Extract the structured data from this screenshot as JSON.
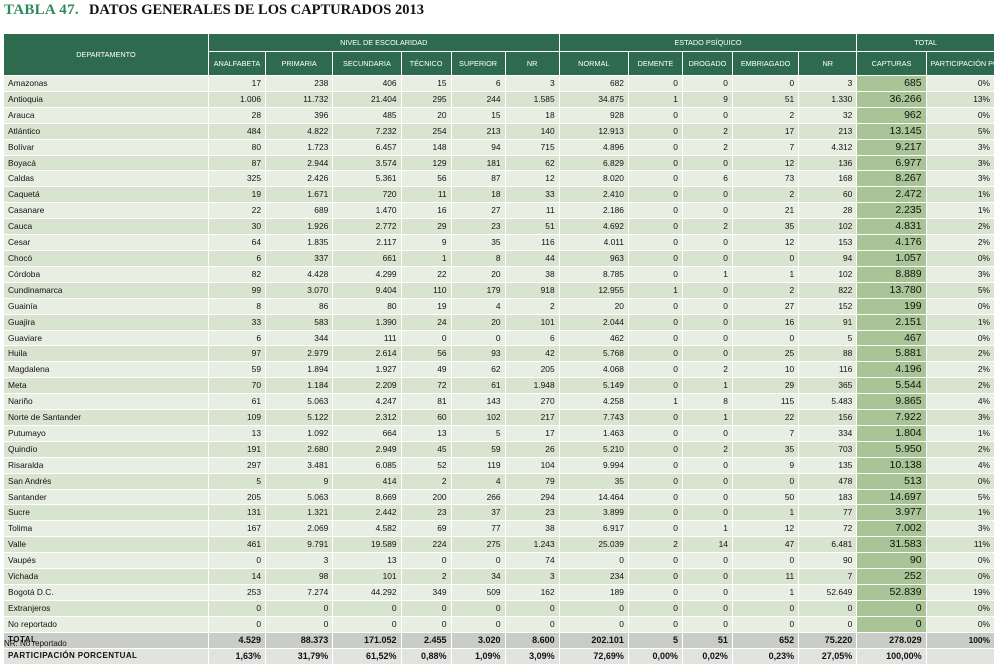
{
  "title": {
    "label": "TABLA 47.",
    "main": "DATOS GENERALES DE LOS CAPTURADOS 2013"
  },
  "headers": {
    "departamento": "DEPARTAMENTO",
    "group_escolaridad": "NIVEL DE ESCOLARIDAD",
    "group_psiquico": "ESTADO PSÍQUICO",
    "group_total": "TOTAL",
    "columns": [
      "ANALFABETA",
      "PRIMARIA",
      "SECUNDARIA",
      "TÉCNICO",
      "SUPERIOR",
      "NR",
      "NORMAL",
      "DEMENTE",
      "DROGADO",
      "EMBRIAGADO",
      "NR",
      "CAPTURAS",
      "PARTICIPACIÓN PORCENTUAL"
    ]
  },
  "rows": [
    [
      "Amazonas",
      "17",
      "238",
      "406",
      "15",
      "6",
      "3",
      "682",
      "0",
      "0",
      "0",
      "3",
      "685",
      "0%"
    ],
    [
      "Antioquia",
      "1.006",
      "11.732",
      "21.404",
      "295",
      "244",
      "1.585",
      "34.875",
      "1",
      "9",
      "51",
      "1.330",
      "36.266",
      "13%"
    ],
    [
      "Arauca",
      "28",
      "396",
      "485",
      "20",
      "15",
      "18",
      "928",
      "0",
      "0",
      "2",
      "32",
      "962",
      "0%"
    ],
    [
      "Atlántico",
      "484",
      "4.822",
      "7.232",
      "254",
      "213",
      "140",
      "12.913",
      "0",
      "2",
      "17",
      "213",
      "13.145",
      "5%"
    ],
    [
      "Bolívar",
      "80",
      "1.723",
      "6.457",
      "148",
      "94",
      "715",
      "4.896",
      "0",
      "2",
      "7",
      "4.312",
      "9.217",
      "3%"
    ],
    [
      "Boyacá",
      "87",
      "2.944",
      "3.574",
      "129",
      "181",
      "62",
      "6.829",
      "0",
      "0",
      "12",
      "136",
      "6.977",
      "3%"
    ],
    [
      "Caldas",
      "325",
      "2.426",
      "5.361",
      "56",
      "87",
      "12",
      "8.020",
      "0",
      "6",
      "73",
      "168",
      "8.267",
      "3%"
    ],
    [
      "Caquetá",
      "19",
      "1.671",
      "720",
      "11",
      "18",
      "33",
      "2.410",
      "0",
      "0",
      "2",
      "60",
      "2.472",
      "1%"
    ],
    [
      "Casanare",
      "22",
      "689",
      "1.470",
      "16",
      "27",
      "11",
      "2.186",
      "0",
      "0",
      "21",
      "28",
      "2.235",
      "1%"
    ],
    [
      "Cauca",
      "30",
      "1.926",
      "2.772",
      "29",
      "23",
      "51",
      "4.692",
      "0",
      "2",
      "35",
      "102",
      "4.831",
      "2%"
    ],
    [
      "Cesar",
      "64",
      "1.835",
      "2.117",
      "9",
      "35",
      "116",
      "4.011",
      "0",
      "0",
      "12",
      "153",
      "4.176",
      "2%"
    ],
    [
      "Chocó",
      "6",
      "337",
      "661",
      "1",
      "8",
      "44",
      "963",
      "0",
      "0",
      "0",
      "94",
      "1.057",
      "0%"
    ],
    [
      "Córdoba",
      "82",
      "4.428",
      "4.299",
      "22",
      "20",
      "38",
      "8.785",
      "0",
      "1",
      "1",
      "102",
      "8.889",
      "3%"
    ],
    [
      "Cundinamarca",
      "99",
      "3.070",
      "9.404",
      "110",
      "179",
      "918",
      "12.955",
      "1",
      "0",
      "2",
      "822",
      "13.780",
      "5%"
    ],
    [
      "Guainía",
      "8",
      "86",
      "80",
      "19",
      "4",
      "2",
      "20",
      "0",
      "0",
      "27",
      "152",
      "199",
      "0%"
    ],
    [
      "Guajira",
      "33",
      "583",
      "1.390",
      "24",
      "20",
      "101",
      "2.044",
      "0",
      "0",
      "16",
      "91",
      "2.151",
      "1%"
    ],
    [
      "Guaviare",
      "6",
      "344",
      "111",
      "0",
      "0",
      "6",
      "462",
      "0",
      "0",
      "0",
      "5",
      "467",
      "0%"
    ],
    [
      "Huila",
      "97",
      "2.979",
      "2.614",
      "56",
      "93",
      "42",
      "5.768",
      "0",
      "0",
      "25",
      "88",
      "5.881",
      "2%"
    ],
    [
      "Magdalena",
      "59",
      "1.894",
      "1.927",
      "49",
      "62",
      "205",
      "4.068",
      "0",
      "2",
      "10",
      "116",
      "4.196",
      "2%"
    ],
    [
      "Meta",
      "70",
      "1.184",
      "2.209",
      "72",
      "61",
      "1.948",
      "5.149",
      "0",
      "1",
      "29",
      "365",
      "5.544",
      "2%"
    ],
    [
      "Nariño",
      "61",
      "5.063",
      "4.247",
      "81",
      "143",
      "270",
      "4.258",
      "1",
      "8",
      "115",
      "5.483",
      "9.865",
      "4%"
    ],
    [
      "Norte de Santander",
      "109",
      "5.122",
      "2.312",
      "60",
      "102",
      "217",
      "7.743",
      "0",
      "1",
      "22",
      "156",
      "7.922",
      "3%"
    ],
    [
      "Putumayo",
      "13",
      "1.092",
      "664",
      "13",
      "5",
      "17",
      "1.463",
      "0",
      "0",
      "7",
      "334",
      "1.804",
      "1%"
    ],
    [
      "Quindío",
      "191",
      "2.680",
      "2.949",
      "45",
      "59",
      "26",
      "5.210",
      "0",
      "2",
      "35",
      "703",
      "5.950",
      "2%"
    ],
    [
      "Risaralda",
      "297",
      "3.481",
      "6.085",
      "52",
      "119",
      "104",
      "9.994",
      "0",
      "0",
      "9",
      "135",
      "10.138",
      "4%"
    ],
    [
      "San Andrés",
      "5",
      "9",
      "414",
      "2",
      "4",
      "79",
      "35",
      "0",
      "0",
      "0",
      "478",
      "513",
      "0%"
    ],
    [
      "Santander",
      "205",
      "5.063",
      "8.669",
      "200",
      "266",
      "294",
      "14.464",
      "0",
      "0",
      "50",
      "183",
      "14.697",
      "5%"
    ],
    [
      "Sucre",
      "131",
      "1.321",
      "2.442",
      "23",
      "37",
      "23",
      "3.899",
      "0",
      "0",
      "1",
      "77",
      "3.977",
      "1%"
    ],
    [
      "Tolima",
      "167",
      "2.069",
      "4.582",
      "69",
      "77",
      "38",
      "6.917",
      "0",
      "1",
      "12",
      "72",
      "7.002",
      "3%"
    ],
    [
      "Valle",
      "461",
      "9.791",
      "19.589",
      "224",
      "275",
      "1.243",
      "25.039",
      "2",
      "14",
      "47",
      "6.481",
      "31.583",
      "11%"
    ],
    [
      "Vaupés",
      "0",
      "3",
      "13",
      "0",
      "0",
      "74",
      "0",
      "0",
      "0",
      "0",
      "90",
      "90",
      "0%"
    ],
    [
      "Vichada",
      "14",
      "98",
      "101",
      "2",
      "34",
      "3",
      "234",
      "0",
      "0",
      "11",
      "7",
      "252",
      "0%"
    ],
    [
      "Bogotá D.C.",
      "253",
      "7.274",
      "44.292",
      "349",
      "509",
      "162",
      "189",
      "0",
      "0",
      "1",
      "52.649",
      "52.839",
      "19%"
    ],
    [
      "Extranjeros",
      "0",
      "0",
      "0",
      "0",
      "0",
      "0",
      "0",
      "0",
      "0",
      "0",
      "0",
      "0",
      "0%"
    ],
    [
      "No reportado",
      "0",
      "0",
      "0",
      "0",
      "0",
      "0",
      "0",
      "0",
      "0",
      "0",
      "0",
      "0",
      "0%"
    ]
  ],
  "total": [
    "TOTAL",
    "4.529",
    "88.373",
    "171.052",
    "2.455",
    "3.020",
    "8.600",
    "202.101",
    "5",
    "51",
    "652",
    "75.220",
    "278.029",
    "100%"
  ],
  "participacion": [
    "PARTICIPACIÓN PORCENTUAL",
    "1,63%",
    "31,79%",
    "61,52%",
    "0,88%",
    "1,09%",
    "3,09%",
    "72,69%",
    "0,00%",
    "0,02%",
    "0,23%",
    "27,05%",
    "100,00%",
    ""
  ],
  "footnote": "NR: No reportado"
}
